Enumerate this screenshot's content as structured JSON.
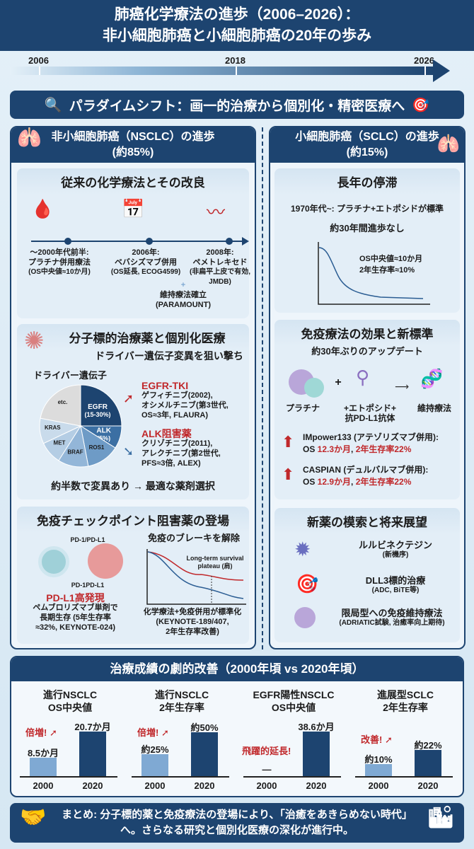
{
  "header": {
    "title_line1": "肺癌化学療法の進歩（2006–2026）：",
    "title_line2": "非小細胞肺癌と小細胞肺癌の20年の歩み"
  },
  "timeline": {
    "labels": [
      "2006",
      "2018",
      "2026"
    ]
  },
  "paradigm": {
    "text": "パラダイムシフト：画一的治療から個別化・精密医療へ"
  },
  "nsclc": {
    "title": "非小細胞肺癌（NSCLC）の進歩",
    "share": "(約85%)",
    "chemo": {
      "title": "従来の化学療法とその改良",
      "items": [
        {
          "year": "～2000年代前半:",
          "name": "プラチナ併用療法",
          "note": "(OS中央値≈10か月)"
        },
        {
          "year": "2006年:",
          "name": "ベバシズマブ併用",
          "note": "(OS延長, ECOG4599)"
        },
        {
          "year": "2008年:",
          "name": "ペメトレキセド",
          "note": "(非扁平上皮で有効,",
          "note2": "JMDB)"
        }
      ],
      "plus": "+",
      "maint": "維持療法確立",
      "maint_note": "(PARAMOUNT)"
    },
    "targeted": {
      "title": "分子標的治療薬と個別化医療",
      "subtitle": "ドライバー遺伝子変異を狙い撃ち",
      "pie_title": "ドライバー遺伝子",
      "slices": [
        {
          "label": "EGFR",
          "sub": "(15-30%)",
          "color": "#1d4470"
        },
        {
          "label": "ALK",
          "sub": "(5%)",
          "color": "#3b6fa3"
        },
        {
          "label": "ROS1",
          "color": "#6e9bc6"
        },
        {
          "label": "BRAF",
          "color": "#93b6d8"
        },
        {
          "label": "MET",
          "color": "#b4cde4"
        },
        {
          "label": "KRAS",
          "color": "#c9dbeb"
        },
        {
          "label": "etc.",
          "color": "#dcdcdc"
        }
      ],
      "egfr_head": "EGFR-TKI",
      "egfr_lines": [
        "ゲフィチニブ(2002),",
        "オシメルチニブ(第3世代,",
        "OS≈3年, FLAURA)"
      ],
      "alk_head": "ALK阻害薬",
      "alk_lines": [
        "クリゾチニブ(2011),",
        "アレクチニブ(第2世代,",
        "PFS≈3倍, ALEX)"
      ],
      "footer": "約半数で変異あり → 最適な薬剤選択"
    },
    "ici": {
      "title": "免疫チェックポイント阻害薬の登場",
      "label_top": "PD-1/PD-L1",
      "label_bottom": "PD-1PD-L1",
      "brake": "免疫のブレーキを解除",
      "plateau1": "Long-term survival",
      "plateau2": "plateau (肩)",
      "pdl1_head": "PD-L1高発現",
      "pdl1_lines": [
        "ペムブロリズマブ単剤で",
        "長期生存 (5年生存率",
        "≈32%, KEYNOTE-024)"
      ],
      "combo_lines": [
        "化学療法+免疫併用が標準化",
        "(KEYNOTE-189/407,",
        "2年生存率改善)"
      ]
    }
  },
  "sclc": {
    "title": "小細胞肺癌（SCLC）の進歩",
    "share": "(約15%)",
    "stagnation": {
      "title": "長年の停滞",
      "line1": "1970年代~: プラチナ+エトポシドが標準",
      "line2": "約30年間進歩なし",
      "os": "OS中央値≈10か月",
      "surv": "2年生存率≈10%"
    },
    "immuno": {
      "title": "免疫療法の効果と新標準",
      "subtitle": "約30年ぶりのアップデート",
      "plus": "+",
      "step1": "プラチナ",
      "step2a": "+エトポシド+",
      "step2b": "抗PD-L1抗体",
      "step3": "維持療法",
      "trials": [
        {
          "name": "IMpower133 (アテゾリズマブ併用):",
          "os_prefix": "OS ",
          "os": "12.3か月",
          "sep": ", ",
          "surv": "2年生存率22%"
        },
        {
          "name": "CASPIAN (デュルバルマブ併用):",
          "os_prefix": "OS ",
          "os": "12.9か月",
          "sep": ", ",
          "surv": "2年生存率22%"
        }
      ]
    },
    "future": {
      "title": "新薬の模索と将来展望",
      "items": [
        {
          "name": "ルルビネクテジン",
          "note": "(新機序)"
        },
        {
          "name": "DLL3標的治療",
          "note": "(ADC, BiTE等)"
        },
        {
          "name": "限局型への免疫維持療法",
          "note": "(ADRIATIC試験, 治癒率向上期待)"
        }
      ]
    }
  },
  "outcomes": {
    "title": "治療成績の劇的改善（2000年頃 vs 2020年頃）"
  },
  "chart_data": [
    {
      "type": "bar",
      "title": "進行NSCLC OS中央値",
      "categories": [
        "2000",
        "2020"
      ],
      "values": [
        8.5,
        20.7
      ],
      "labels": [
        "8.5か月",
        "20.7か月"
      ],
      "annotation": "倍増!",
      "ylim": [
        0,
        23
      ]
    },
    {
      "type": "bar",
      "title": "進行NSCLC 2年生存率",
      "categories": [
        "2000",
        "2020"
      ],
      "values": [
        25,
        50
      ],
      "labels": [
        "約25%",
        "約50%"
      ],
      "annotation": "倍増!",
      "ylim": [
        0,
        56
      ]
    },
    {
      "type": "bar",
      "title": "EGFR陽性NSCLC OS中央値",
      "categories": [
        "2000",
        "2020"
      ],
      "values": [
        null,
        38.6
      ],
      "labels": [
        "—",
        "38.6か月"
      ],
      "annotation": "飛躍的延長!",
      "ylim": [
        0,
        43
      ]
    },
    {
      "type": "bar",
      "title": "進展型SCLC 2年生存率",
      "categories": [
        "2000",
        "2020"
      ],
      "values": [
        10,
        22
      ],
      "labels": [
        "約10%",
        "約22%"
      ],
      "annotation": "改善!",
      "ylim": [
        0,
        42
      ]
    }
  ],
  "summary": {
    "text": "まとめ: 分子標的薬と免疫療法の登場により、「治癒をあきらめない時代」へ。さらなる研究と個別化医療の深化が進行中。"
  },
  "colors": {
    "navy": "#1d4470",
    "accent_red": "#c0282b",
    "light_bar": "#7fa9d3"
  }
}
